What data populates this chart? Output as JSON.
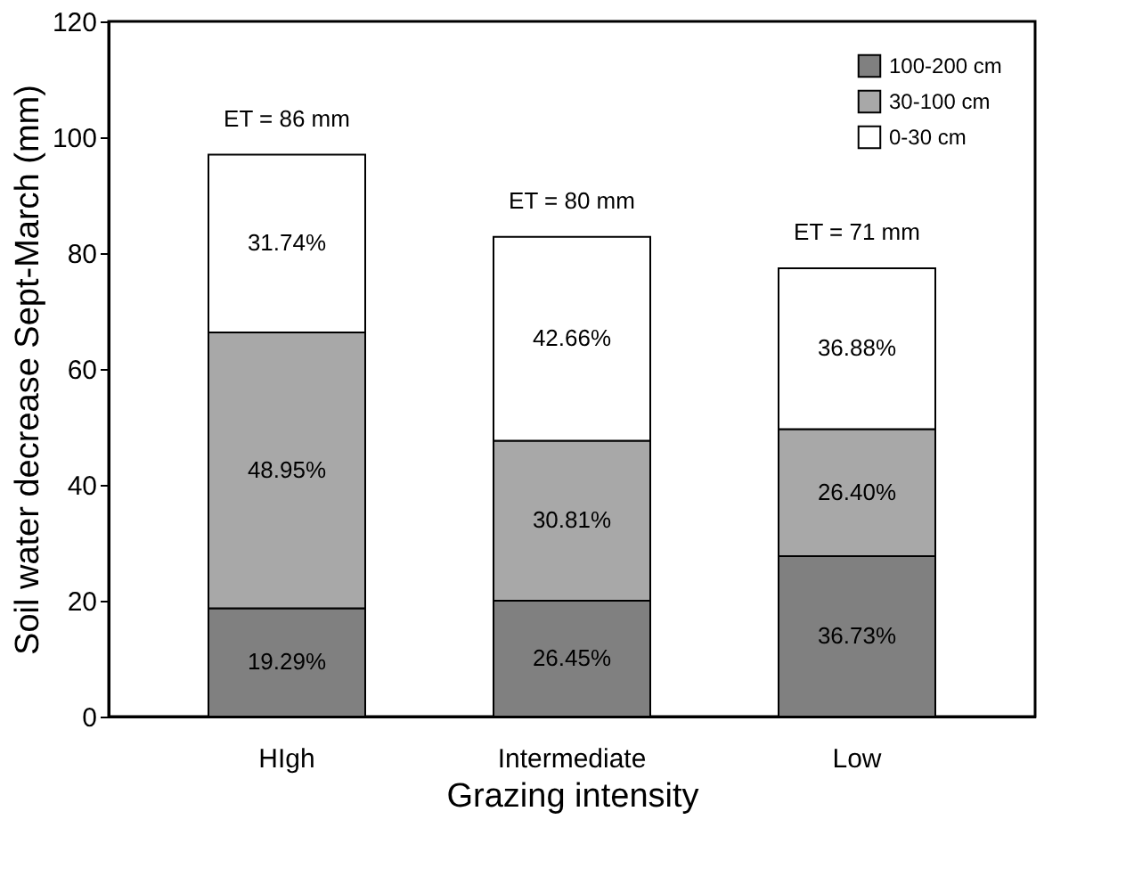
{
  "chart_data": {
    "type": "bar",
    "stacked": true,
    "xlabel": "Grazing intensity",
    "ylabel": "Soil water decrease Sept-March (mm)",
    "categories": [
      "HIgh",
      "Intermediate",
      "Low"
    ],
    "series": [
      {
        "name": "100-200 cm",
        "color": "#808080",
        "values": [
          18.7,
          20.0,
          27.7
        ]
      },
      {
        "name": "30-100 cm",
        "color": "#a8a8a8",
        "values": [
          47.6,
          27.6,
          21.9
        ]
      },
      {
        "name": "0-30 cm",
        "color": "#ffffff",
        "values": [
          30.7,
          35.2,
          27.8
        ]
      }
    ],
    "annotations": [
      "ET = 86 mm",
      "ET = 80 mm",
      "ET = 71 mm",
      "31.74%",
      "48.95%",
      "19.29%",
      "42.66%",
      "30.81%",
      "26.45%",
      "36.88%",
      "26.40%",
      "36.73%"
    ],
    "ylim": [
      0,
      120
    ],
    "yticks": [
      0,
      20,
      40,
      60,
      80,
      100,
      120
    ],
    "grid": false,
    "legend": "top right"
  }
}
